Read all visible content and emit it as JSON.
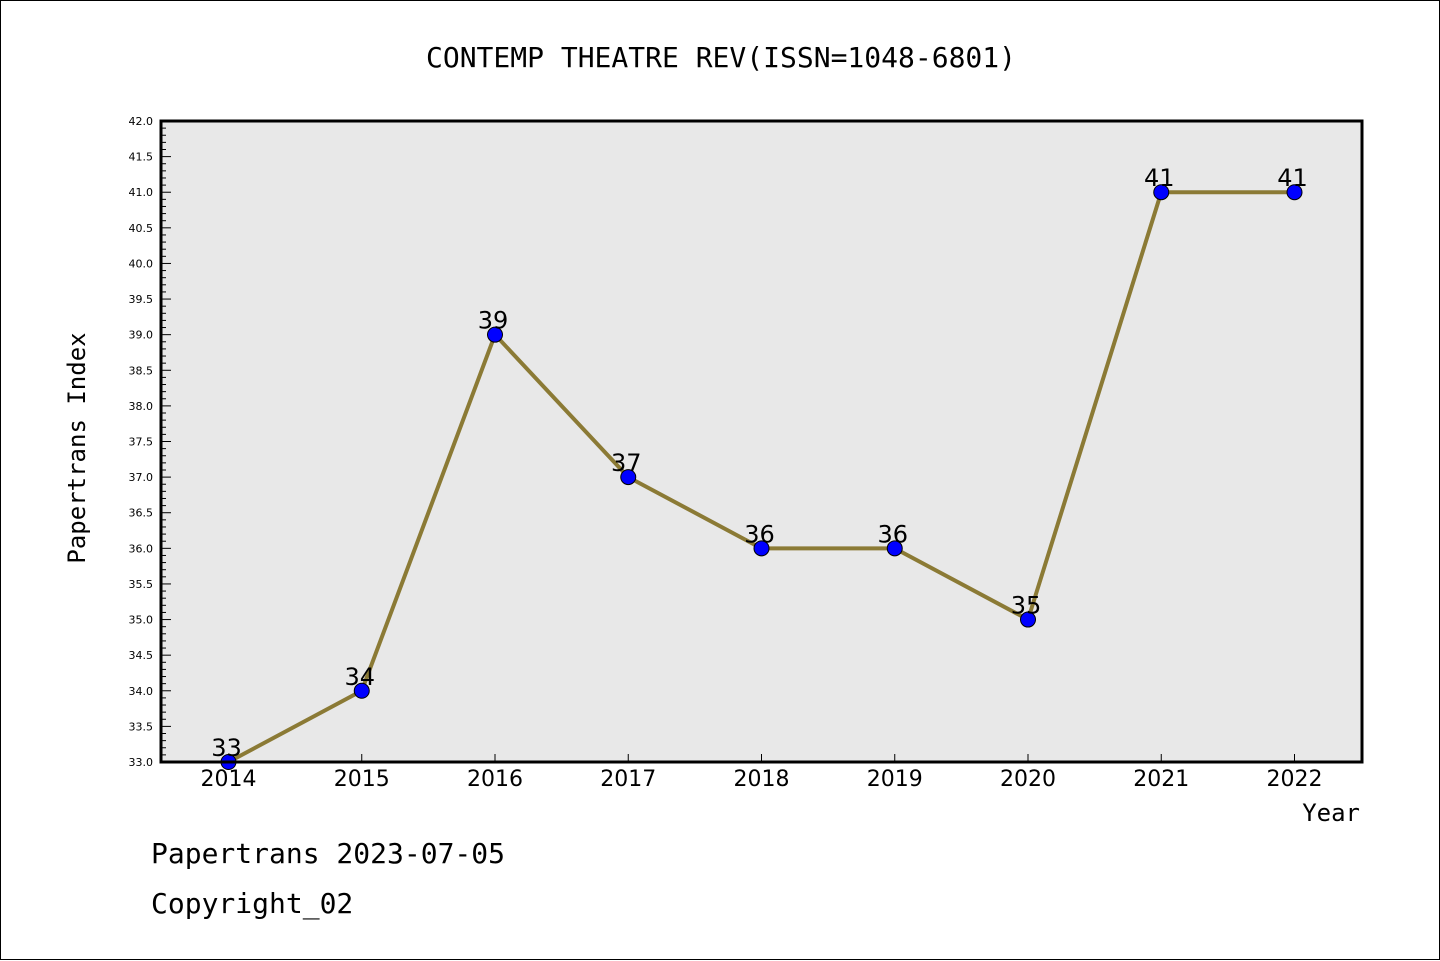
{
  "chart_data": {
    "type": "line",
    "title": "CONTEMP THEATRE REV(ISSN=1048-6801)",
    "xlabel": "Year",
    "ylabel": "Papertrans Index",
    "x": [
      "2014",
      "2015",
      "2016",
      "2017",
      "2018",
      "2019",
      "2020",
      "2021",
      "2022"
    ],
    "series": [
      {
        "values": [
          33,
          34,
          39,
          37,
          36,
          36,
          35,
          41,
          41
        ]
      }
    ],
    "data_labels": [
      "33",
      "34",
      "39",
      "37",
      "36",
      "36",
      "35",
      "41",
      "41"
    ],
    "ylim": [
      33.0,
      42.0
    ],
    "yticks": [
      "33.0",
      "33.5",
      "34.0",
      "34.5",
      "35.0",
      "35.5",
      "36.0",
      "36.5",
      "37.0",
      "37.5",
      "38.0",
      "38.5",
      "39.0",
      "39.5",
      "40.0",
      "40.5",
      "41.0",
      "41.5",
      "42.0"
    ],
    "grid": false,
    "colors": {
      "line": "#8b7a35",
      "marker": "#0000ff",
      "plot_bg": "#e8e8e8"
    }
  },
  "footer": {
    "date_text": "Papertrans 2023-07-05",
    "copyright_text": "Copyright_02"
  }
}
